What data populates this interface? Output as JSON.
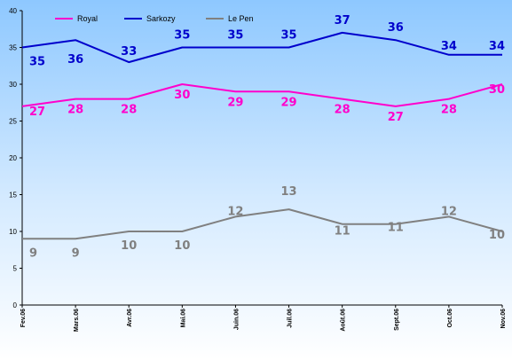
{
  "chart_data": {
    "type": "line",
    "x": [
      "Fev.06",
      "Mars.06",
      "Avr.06",
      "Mai.06",
      "Juin.06",
      "Juil.06",
      "Août.06",
      "Sept.06",
      "Oct.06",
      "Nov.06"
    ],
    "ylim": [
      0,
      40
    ],
    "yticks": [
      "0",
      "5",
      "10",
      "15",
      "20",
      "25",
      "30",
      "35",
      "40"
    ],
    "legend_position": "top-left",
    "grid": false,
    "series": [
      {
        "name": "Royal",
        "color": "#ff00cc",
        "values": [
          27,
          28,
          28,
          30,
          29,
          29,
          28,
          27,
          28,
          30
        ],
        "labels": [
          "27",
          "28",
          "28",
          "30",
          "29",
          "29",
          "28",
          "27",
          "28",
          "30"
        ]
      },
      {
        "name": "Sarkozy",
        "color": "#0000cc",
        "values": [
          35,
          36,
          33,
          35,
          35,
          35,
          37,
          36,
          34,
          34
        ],
        "labels": [
          "35",
          "36",
          "33",
          "35",
          "35",
          "35",
          "37",
          "36",
          "34",
          "34"
        ]
      },
      {
        "name": "Le Pen",
        "color": "#808080",
        "values": [
          9,
          9,
          10,
          10,
          12,
          13,
          11,
          11,
          12,
          10
        ],
        "labels": [
          "9",
          "9",
          "10",
          "10",
          "12",
          "13",
          "11",
          "11",
          "12",
          "10"
        ]
      }
    ]
  }
}
